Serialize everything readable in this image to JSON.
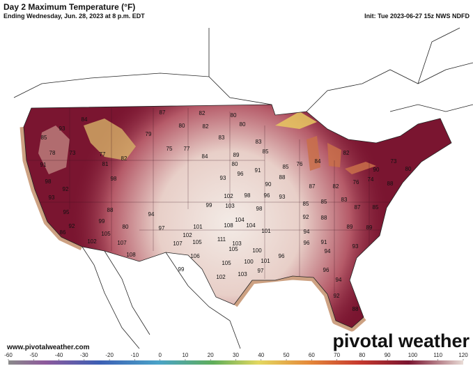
{
  "header": {
    "title": "Day 2 Maximum Temperature (°F)",
    "subtitle": "Ending Wednesday, Jun. 28, 2023 at 8 p.m. EDT",
    "init": "Init: Tue 2023-06-27 15z NWS NDFD"
  },
  "temperatures": [
    93,
    84,
    85,
    78,
    73,
    77,
    81,
    91,
    98,
    92,
    98,
    82,
    93,
    95,
    92,
    86,
    88,
    99,
    80,
    105,
    107,
    108,
    102,
    87,
    82,
    80,
    80,
    82,
    80,
    79,
    75,
    77,
    84,
    83,
    83,
    80,
    85,
    89,
    93,
    96,
    91,
    85,
    90,
    88,
    102,
    98,
    96,
    93,
    99,
    103,
    98,
    94,
    97,
    101,
    108,
    104,
    104,
    101,
    102,
    107,
    105,
    111,
    103,
    105,
    100,
    106,
    105,
    101,
    100,
    99,
    102,
    103,
    97,
    96,
    87,
    82,
    76,
    74,
    90,
    85,
    83,
    85,
    88,
    89,
    92,
    94,
    91,
    96,
    94,
    93,
    96,
    94,
    92,
    88,
    89,
    87,
    85,
    84,
    76,
    82,
    88,
    80,
    73
  ],
  "footer": {
    "website": "www.pivotalweather.com",
    "brand": "pivotal weather"
  },
  "colorbar": {
    "lim": [
      -60,
      120
    ],
    "ticks": [
      -60,
      -50,
      -40,
      -30,
      -20,
      -10,
      0,
      10,
      20,
      30,
      40,
      50,
      60,
      70,
      80,
      90,
      100,
      110,
      120
    ]
  }
}
